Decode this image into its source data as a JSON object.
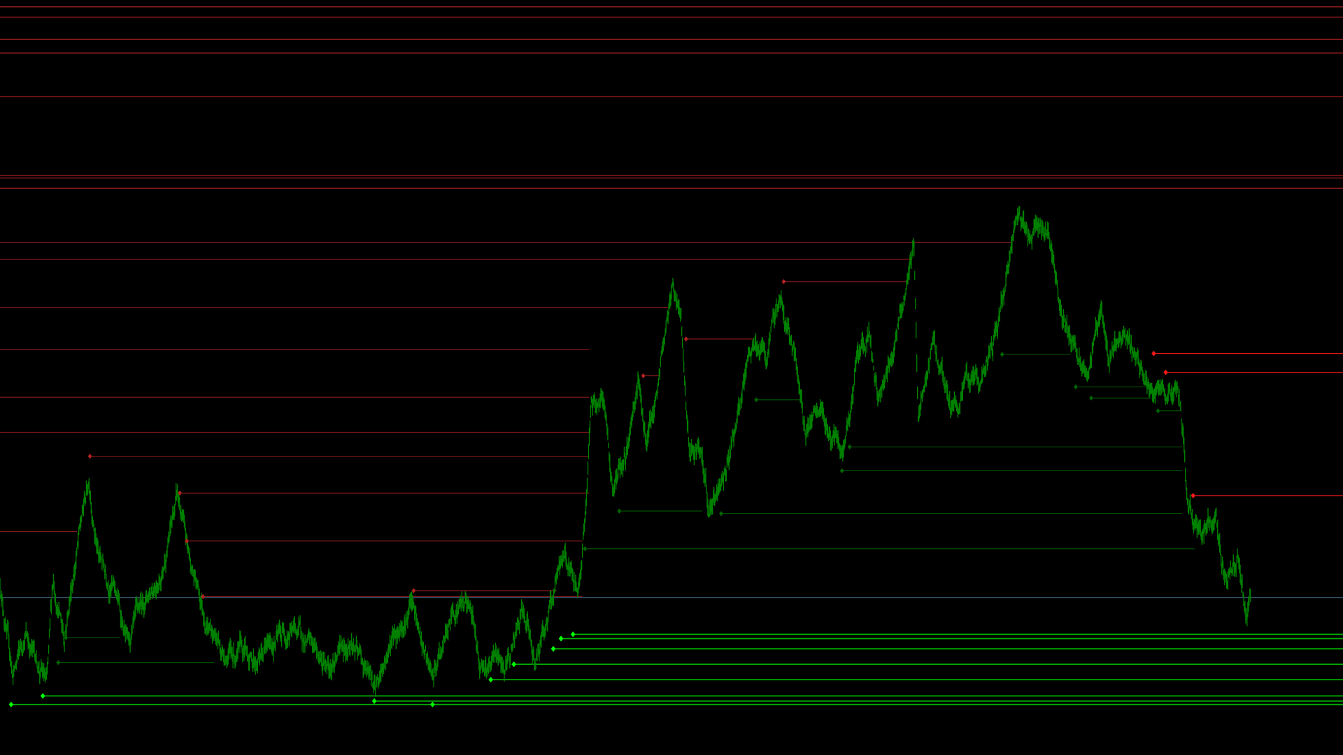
{
  "colors": {
    "background": "#000000",
    "price": "#008000",
    "resistance": "#8b1a1a",
    "resistance_active": "#ff1a1a",
    "support_active": "#00ff00",
    "support_inactive": "#006400",
    "current_price": "#3a5f7a"
  },
  "chart_data": {
    "type": "line",
    "title": "",
    "xlabel": "",
    "ylabel": "",
    "grid": false,
    "legend": "none",
    "xlim": [
      0,
      1568
    ],
    "ylim": [
      0,
      882
    ],
    "price_series": {
      "x": [
        0,
        15,
        30,
        55,
        62,
        75,
        90,
        104,
        115,
        135,
        150,
        170,
        190,
        207,
        220,
        240,
        260,
        300,
        340,
        380,
        410,
        438,
        460,
        480,
        505,
        530,
        548,
        560,
        590,
        610,
        625,
        645,
        660,
        675,
        685,
        690,
        705,
        715,
        730,
        745,
        755,
        770,
        785,
        795,
        805,
        815,
        828,
        840,
        860,
        870,
        880,
        895,
        910,
        925,
        940,
        960,
        985,
        1000,
        1015,
        1025,
        1040,
        1055,
        1067,
        1072,
        1090,
        1110,
        1130,
        1150,
        1165,
        1180,
        1190,
        1200,
        1215,
        1230,
        1240,
        1255,
        1270,
        1285,
        1295,
        1320,
        1340,
        1360,
        1375,
        1382,
        1385,
        1400,
        1420,
        1430,
        1445,
        1455,
        1460
      ],
      "y": [
        202,
        92,
        142,
        82,
        202,
        142,
        242,
        322,
        232,
        192,
        122,
        182,
        222,
        302,
        232,
        162,
        122,
        112,
        152,
        107,
        132,
        77,
        142,
        177,
        82,
        172,
        182,
        112,
        102,
        162,
        112,
        182,
        232,
        192,
        302,
        402,
        422,
        312,
        342,
        442,
        362,
        442,
        557,
        502,
        342,
        362,
        282,
        312,
        392,
        432,
        482,
        462,
        532,
        482,
        382,
        392,
        342,
        462,
        502,
        412,
        462,
        542,
        592,
        392,
        482,
        402,
        432,
        442,
        502,
        582,
        632,
        602,
        627,
        582,
        512,
        472,
        447,
        522,
        472,
        477,
        432,
        422,
        427,
        362,
        302,
        252,
        272,
        202,
        227,
        162,
        192
      ]
    },
    "current_price": 184,
    "resistance_full": [
      874,
      862,
      836,
      820,
      769,
      677,
      674,
      662
    ],
    "resistance_partial": [
      {
        "price": 599,
        "from": 0,
        "to": 1180
      },
      {
        "price": 579,
        "from": 0,
        "to": 1065
      },
      {
        "price": 523,
        "from": 0,
        "to": 780
      },
      {
        "price": 474,
        "from": 0,
        "to": 688
      },
      {
        "price": 418,
        "from": 0,
        "to": 688
      },
      {
        "price": 377,
        "from": 0,
        "to": 688
      },
      {
        "price": 349,
        "from": 105,
        "to": 688
      },
      {
        "price": 306,
        "from": 210,
        "to": 688
      },
      {
        "price": 261,
        "from": 0,
        "to": 90
      },
      {
        "price": 250,
        "from": 218,
        "to": 680
      },
      {
        "price": 185,
        "from": 237,
        "to": 680
      },
      {
        "price": 192,
        "from": 483,
        "to": 650
      },
      {
        "price": 553,
        "from": 915,
        "to": 1060
      },
      {
        "price": 486,
        "from": 801,
        "to": 880
      },
      {
        "price": 443,
        "from": 751,
        "to": 770
      }
    ],
    "resistance_active": [
      {
        "price": 469,
        "from": 1347
      },
      {
        "price": 447,
        "from": 1361
      },
      {
        "price": 303,
        "from": 1393
      }
    ],
    "support_active": [
      {
        "price": 141,
        "from": 669
      },
      {
        "price": 136,
        "from": 655
      },
      {
        "price": 124,
        "from": 646
      },
      {
        "price": 106,
        "from": 600
      },
      {
        "price": 88,
        "from": 573
      },
      {
        "price": 69,
        "from": 50
      },
      {
        "price": 63,
        "from": 437
      },
      {
        "price": 59,
        "from": 13
      },
      {
        "price": 59,
        "from": 505
      }
    ],
    "support_inactive": [
      {
        "price": 360,
        "from": 992,
        "to": 1380
      },
      {
        "price": 332,
        "from": 983,
        "to": 1380
      },
      {
        "price": 282,
        "from": 842,
        "to": 1380
      },
      {
        "price": 285,
        "from": 723,
        "to": 820
      },
      {
        "price": 241,
        "from": 683,
        "to": 1395
      },
      {
        "price": 468,
        "from": 1170,
        "to": 1250
      },
      {
        "price": 430,
        "from": 1256,
        "to": 1340
      },
      {
        "price": 417,
        "from": 1274,
        "to": 1345
      },
      {
        "price": 402,
        "from": 1352,
        "to": 1380
      },
      {
        "price": 415,
        "from": 883,
        "to": 935
      },
      {
        "price": 137,
        "from": 77,
        "to": 140
      },
      {
        "price": 108,
        "from": 68,
        "to": 250
      }
    ]
  }
}
